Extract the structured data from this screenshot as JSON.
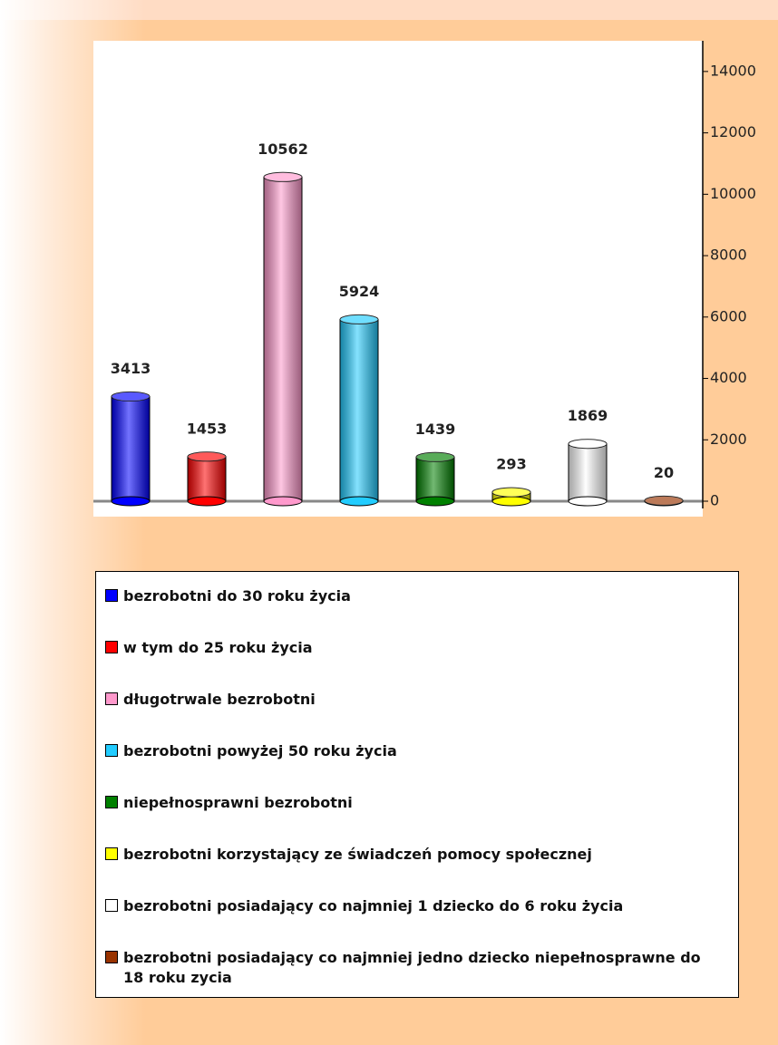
{
  "chart_data": {
    "type": "bar",
    "categories": [
      "bezrobotni do 30 roku życia",
      "w tym do 25 roku życia",
      "długotrwale bezrobotni",
      "bezrobotni powyżej 50 roku życia",
      "niepełnosprawni bezrobotni",
      "bezrobotni korzystający ze świadczeń pomocy społecznej",
      "bezrobotni posiadający co najmniej 1 dziecko do 6 roku życia",
      "bezrobotni posiadający co najmniej jedno dziecko niepełnosprawne do 18 roku zycia"
    ],
    "values": [
      3413,
      1453,
      10562,
      5924,
      1439,
      293,
      1869,
      20
    ],
    "colors": [
      "#0000ff",
      "#ff0000",
      "#ff99cc",
      "#22ccff",
      "#008000",
      "#ffff00",
      "#ffffff",
      "#993300"
    ],
    "ylim": [
      0,
      15000
    ],
    "yticks": [
      0,
      2000,
      4000,
      6000,
      8000,
      10000,
      12000,
      14000
    ]
  }
}
